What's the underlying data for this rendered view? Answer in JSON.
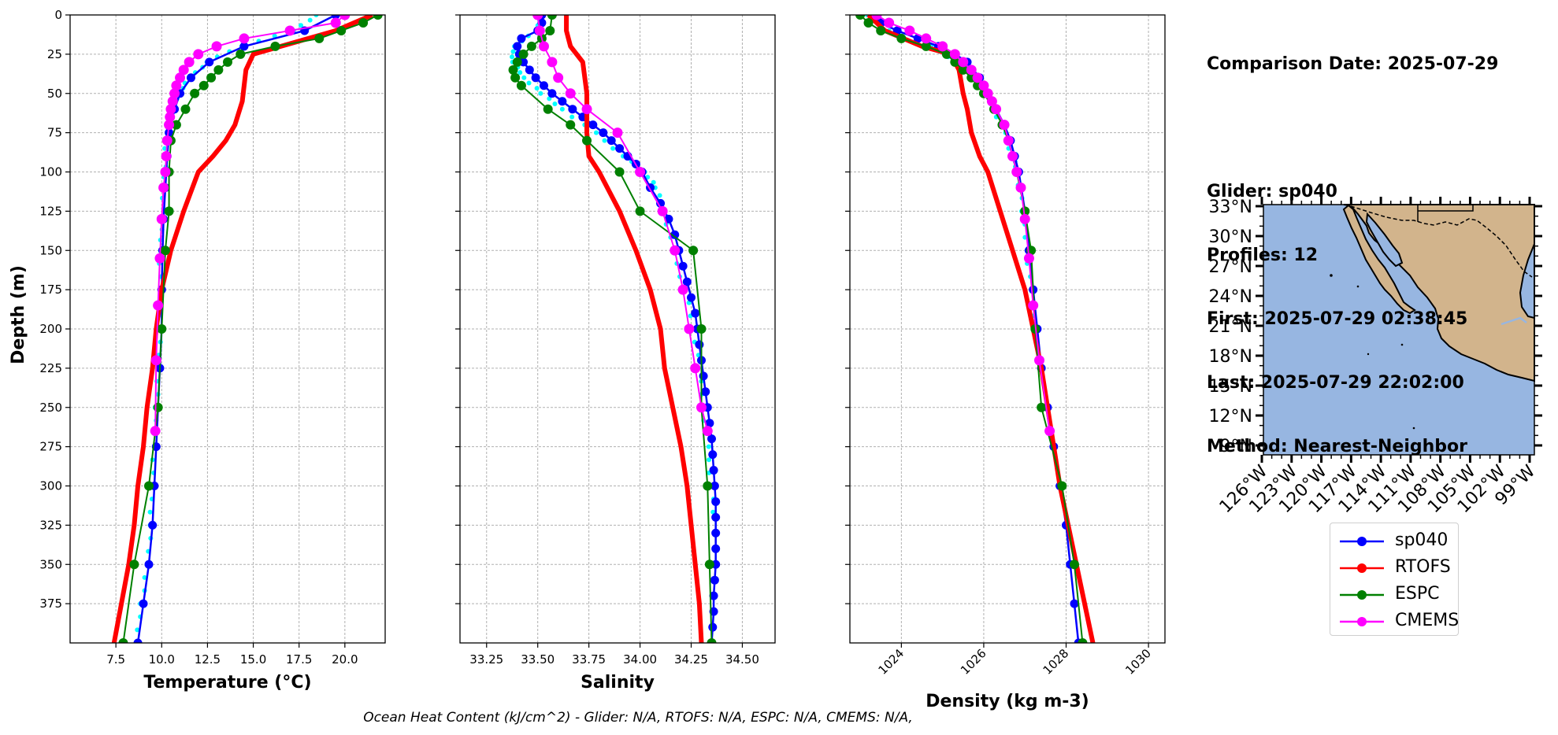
{
  "chart_data": [
    {
      "type": "line",
      "panel": "temperature",
      "xlabel": "Temperature (°C)",
      "ylabel": "Depth (m)",
      "xlim": [
        5.0,
        22.2
      ],
      "ylim": [
        400,
        0
      ],
      "xticks": [
        7.5,
        10.0,
        12.5,
        15.0,
        17.5,
        20.0
      ],
      "xtick_labels": [
        "7.5",
        "10.0",
        "12.5",
        "15.0",
        "17.5",
        "20.0"
      ],
      "yticks": [
        0,
        25,
        50,
        75,
        100,
        125,
        150,
        175,
        200,
        225,
        250,
        275,
        300,
        325,
        350,
        375
      ],
      "ytick_labels": [
        "0",
        "25",
        "50",
        "75",
        "100",
        "125",
        "150",
        "175",
        "200",
        "225",
        "250",
        "275",
        "300",
        "325",
        "350",
        "375"
      ],
      "grid": true,
      "series": [
        {
          "name": "sp040",
          "color": "#0000ff",
          "depth": [
            0,
            10,
            20,
            30,
            40,
            50,
            60,
            75,
            90,
            110,
            130,
            150,
            175,
            200,
            225,
            250,
            275,
            300,
            325,
            350,
            375,
            400
          ],
          "values": [
            19.5,
            17.8,
            14.5,
            12.6,
            11.6,
            11.0,
            10.7,
            10.4,
            10.3,
            10.2,
            10.1,
            10.05,
            10.0,
            10.0,
            9.9,
            9.8,
            9.7,
            9.6,
            9.5,
            9.3,
            9.0,
            8.7
          ]
        },
        {
          "name": "RTOFS",
          "color": "#ff0000",
          "depth": [
            0,
            10,
            20,
            25,
            35,
            45,
            55,
            70,
            80,
            90,
            100,
            125,
            150,
            175,
            200,
            225,
            250,
            275,
            300,
            325,
            350,
            375,
            400
          ],
          "values": [
            21.5,
            19.5,
            16.5,
            15.0,
            14.6,
            14.5,
            14.4,
            14.0,
            13.5,
            12.8,
            12.0,
            11.2,
            10.5,
            10.0,
            9.7,
            9.5,
            9.2,
            9.0,
            8.7,
            8.5,
            8.2,
            7.8,
            7.4
          ]
        },
        {
          "name": "ESPC",
          "color": "#008000",
          "depth": [
            0,
            5,
            10,
            15,
            20,
            25,
            30,
            35,
            40,
            45,
            50,
            60,
            70,
            80,
            100,
            125,
            150,
            200,
            250,
            300,
            350,
            400
          ],
          "values": [
            21.8,
            21.0,
            19.8,
            18.6,
            16.2,
            14.3,
            13.6,
            13.1,
            12.7,
            12.3,
            11.8,
            11.3,
            10.8,
            10.5,
            10.4,
            10.4,
            10.2,
            10.0,
            9.8,
            9.3,
            8.5,
            7.9
          ]
        },
        {
          "name": "CMEMS",
          "color": "#ff00ff",
          "depth": [
            0,
            5,
            10,
            15,
            20,
            25,
            30,
            35,
            40,
            45,
            50,
            55,
            60,
            65,
            70,
            80,
            90,
            100,
            110,
            130,
            155,
            185,
            220,
            265
          ],
          "values": [
            20.0,
            19.5,
            17.0,
            14.5,
            13.0,
            12.0,
            11.5,
            11.2,
            11.0,
            10.8,
            10.7,
            10.6,
            10.5,
            10.45,
            10.4,
            10.3,
            10.25,
            10.2,
            10.1,
            10.0,
            9.9,
            9.8,
            9.7,
            9.65
          ]
        },
        {
          "name": "glider-profiles",
          "color": "#00ffff",
          "depth": [
            0,
            10,
            20,
            30,
            40,
            50,
            60,
            75,
            90,
            110,
            130,
            150,
            175,
            200,
            225,
            250,
            275,
            300,
            325,
            350,
            375,
            400
          ],
          "values": [
            18.5,
            17.2,
            14.3,
            12.5,
            11.5,
            10.9,
            10.6,
            10.3,
            10.2,
            10.1,
            10.0,
            9.95,
            9.9,
            9.9,
            9.8,
            9.7,
            9.6,
            9.5,
            9.4,
            9.2,
            8.9,
            8.6
          ]
        }
      ]
    },
    {
      "type": "line",
      "panel": "salinity",
      "xlabel": "Salinity",
      "xlim": [
        33.12,
        34.66
      ],
      "ylim": [
        400,
        0
      ],
      "xticks": [
        33.25,
        33.5,
        33.75,
        34.0,
        34.25,
        34.5
      ],
      "xtick_labels": [
        "33.25",
        "33.50",
        "33.75",
        "34.00",
        "34.25",
        "34.50"
      ],
      "grid": true,
      "series": [
        {
          "name": "sp040",
          "color": "#0000ff",
          "depth": [
            0,
            5,
            10,
            15,
            20,
            25,
            30,
            35,
            40,
            45,
            50,
            55,
            60,
            65,
            70,
            75,
            80,
            85,
            90,
            95,
            100,
            110,
            120,
            130,
            140,
            150,
            160,
            170,
            180,
            190,
            200,
            210,
            220,
            230,
            240,
            250,
            260,
            270,
            280,
            290,
            300,
            310,
            320,
            330,
            340,
            350,
            360,
            370,
            380,
            390,
            400
          ],
          "values": [
            33.52,
            33.52,
            33.5,
            33.42,
            33.4,
            33.41,
            33.43,
            33.46,
            33.49,
            33.53,
            33.57,
            33.62,
            33.67,
            33.72,
            33.77,
            33.82,
            33.86,
            33.9,
            33.94,
            33.98,
            34.01,
            34.05,
            34.1,
            34.14,
            34.17,
            34.19,
            34.21,
            34.23,
            34.25,
            34.27,
            34.28,
            34.29,
            34.3,
            34.31,
            34.32,
            34.33,
            34.34,
            34.35,
            34.355,
            34.36,
            34.365,
            34.37,
            34.37,
            34.37,
            34.37,
            34.37,
            34.365,
            34.36,
            34.36,
            34.355,
            34.35
          ]
        },
        {
          "name": "RTOFS",
          "color": "#ff0000",
          "depth": [
            0,
            10,
            20,
            30,
            40,
            50,
            60,
            75,
            90,
            100,
            125,
            150,
            175,
            200,
            225,
            250,
            275,
            300,
            325,
            350,
            375,
            400
          ],
          "values": [
            33.64,
            33.64,
            33.66,
            33.72,
            33.73,
            33.74,
            33.74,
            33.74,
            33.75,
            33.8,
            33.9,
            33.98,
            34.05,
            34.1,
            34.12,
            34.16,
            34.2,
            34.23,
            34.25,
            34.27,
            34.29,
            34.3
          ]
        },
        {
          "name": "ESPC",
          "color": "#008000",
          "depth": [
            0,
            10,
            15,
            20,
            25,
            30,
            35,
            40,
            45,
            60,
            70,
            80,
            100,
            125,
            150,
            200,
            250,
            300,
            350,
            400
          ],
          "values": [
            33.57,
            33.56,
            33.52,
            33.47,
            33.43,
            33.4,
            33.38,
            33.39,
            33.42,
            33.55,
            33.66,
            33.74,
            33.9,
            34.0,
            34.26,
            34.3,
            34.3,
            34.33,
            34.34,
            34.35
          ]
        },
        {
          "name": "CMEMS",
          "color": "#ff00ff",
          "depth": [
            0,
            10,
            20,
            30,
            40,
            50,
            60,
            75,
            100,
            125,
            150,
            175,
            200,
            225,
            250,
            265
          ],
          "values": [
            33.5,
            33.51,
            33.53,
            33.57,
            33.6,
            33.66,
            33.74,
            33.89,
            34.0,
            34.11,
            34.17,
            34.21,
            34.24,
            34.27,
            34.3,
            34.33
          ]
        },
        {
          "name": "glider-profiles",
          "color": "#00ffff",
          "depth": [
            0,
            10,
            20,
            30,
            40,
            50,
            60,
            75,
            90,
            100,
            110,
            125,
            150,
            175,
            200,
            225,
            250,
            275,
            300,
            325
          ],
          "values": [
            33.51,
            33.5,
            33.38,
            33.38,
            33.43,
            33.52,
            33.62,
            33.78,
            33.92,
            34.02,
            34.08,
            34.12,
            34.16,
            34.22,
            34.26,
            34.29,
            34.31,
            34.33,
            34.35,
            34.36
          ]
        }
      ]
    },
    {
      "type": "line",
      "panel": "density",
      "xlabel": "Density (kg m-3)",
      "xlim": [
        1022.75,
        1030.4
      ],
      "ylim": [
        400,
        0
      ],
      "xticks": [
        1024,
        1026,
        1028,
        1030
      ],
      "xtick_labels": [
        "1024",
        "1026",
        "1028",
        "1030"
      ],
      "grid": true,
      "series": [
        {
          "name": "sp040",
          "color": "#0000ff",
          "depth": [
            0,
            5,
            10,
            15,
            20,
            25,
            30,
            40,
            50,
            60,
            70,
            80,
            90,
            100,
            125,
            150,
            175,
            200,
            225,
            250,
            275,
            300,
            325,
            350,
            375,
            400
          ],
          "values": [
            1023.3,
            1023.5,
            1023.9,
            1024.4,
            1024.9,
            1025.3,
            1025.6,
            1025.9,
            1026.1,
            1026.3,
            1026.5,
            1026.65,
            1026.75,
            1026.85,
            1027.0,
            1027.1,
            1027.2,
            1027.3,
            1027.4,
            1027.55,
            1027.7,
            1027.85,
            1028.0,
            1028.1,
            1028.2,
            1028.3
          ]
        },
        {
          "name": "RTOFS",
          "color": "#ff0000",
          "depth": [
            0,
            10,
            20,
            25,
            35,
            50,
            60,
            75,
            90,
            100,
            125,
            150,
            175,
            200,
            225,
            250,
            275,
            300,
            325,
            350,
            375,
            400
          ],
          "values": [
            1023.2,
            1023.6,
            1024.5,
            1025.2,
            1025.4,
            1025.5,
            1025.6,
            1025.7,
            1025.9,
            1026.1,
            1026.4,
            1026.7,
            1027.0,
            1027.2,
            1027.4,
            1027.55,
            1027.7,
            1027.85,
            1028.05,
            1028.25,
            1028.45,
            1028.65
          ]
        },
        {
          "name": "ESPC",
          "color": "#008000",
          "depth": [
            0,
            5,
            10,
            15,
            20,
            25,
            30,
            35,
            40,
            45,
            50,
            60,
            70,
            80,
            100,
            125,
            150,
            200,
            250,
            300,
            350,
            400
          ],
          "values": [
            1023.0,
            1023.2,
            1023.5,
            1024.0,
            1024.6,
            1025.1,
            1025.3,
            1025.5,
            1025.7,
            1025.85,
            1026.0,
            1026.25,
            1026.45,
            1026.6,
            1026.8,
            1027.0,
            1027.15,
            1027.25,
            1027.4,
            1027.9,
            1028.2,
            1028.4
          ]
        },
        {
          "name": "CMEMS",
          "color": "#ff00ff",
          "depth": [
            0,
            5,
            10,
            15,
            20,
            25,
            30,
            35,
            40,
            45,
            50,
            55,
            60,
            70,
            80,
            90,
            100,
            110,
            130,
            155,
            185,
            220,
            265
          ],
          "values": [
            1023.4,
            1023.7,
            1024.2,
            1024.6,
            1025.0,
            1025.3,
            1025.5,
            1025.7,
            1025.85,
            1026.0,
            1026.1,
            1026.2,
            1026.3,
            1026.5,
            1026.6,
            1026.7,
            1026.8,
            1026.9,
            1027.0,
            1027.1,
            1027.2,
            1027.35,
            1027.6
          ]
        },
        {
          "name": "glider-profiles",
          "color": "#00ffff",
          "depth": [
            0,
            10,
            20,
            30,
            40,
            50,
            60,
            75,
            90,
            100,
            125,
            150,
            175,
            200
          ],
          "values": [
            1023.2,
            1023.7,
            1024.7,
            1025.4,
            1025.8,
            1026.05,
            1026.25,
            1026.5,
            1026.7,
            1026.8,
            1026.95,
            1027.05,
            1027.15,
            1027.25
          ]
        }
      ]
    }
  ],
  "info": {
    "comparison_date": "Comparison Date: 2025-07-29",
    "glider": "Glider: sp040",
    "profiles": "Profiles: 12",
    "first": "First: 2025-07-29 02:38:45",
    "last": "Last: 2025-07-29 22:02:00",
    "method": "Method: Nearest-Neighbor"
  },
  "map": {
    "ocean_color": "#97b6e1",
    "land_color": "#d2b48c",
    "lat_labels": [
      "33°N",
      "30°N",
      "27°N",
      "24°N",
      "21°N",
      "18°N",
      "15°N",
      "12°N",
      "9°N"
    ],
    "lon_labels": [
      "126°W",
      "123°W",
      "120°W",
      "117°W",
      "114°W",
      "111°W",
      "108°W",
      "105°W",
      "102°W",
      "99°W"
    ]
  },
  "legend": [
    {
      "label": "sp040",
      "color": "#0000ff"
    },
    {
      "label": "RTOFS",
      "color": "#ff0000"
    },
    {
      "label": "ESPC",
      "color": "#008000"
    },
    {
      "label": "CMEMS",
      "color": "#ff00ff"
    }
  ],
  "footer": "Ocean Heat Content (kJ/cm^2) - Glider: N/A,  RTOFS: N/A,  ESPC: N/A,  CMEMS: N/A,"
}
